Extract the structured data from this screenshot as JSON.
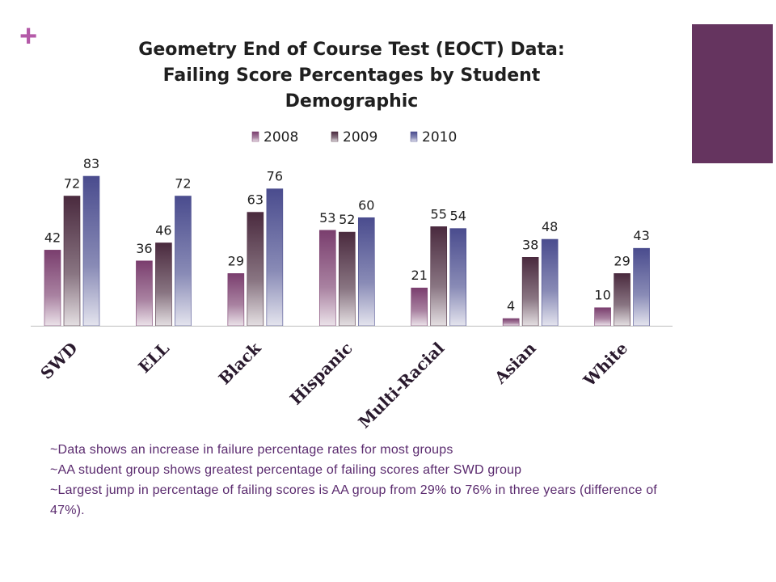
{
  "slide": {
    "plus_glyph": "+",
    "accent_color": "#65345f",
    "plus_color": "#b45aa8"
  },
  "chart_data": {
    "type": "bar",
    "title_lines": [
      "Geometry End of Course Test (EOCT) Data:",
      "Failing Score Percentages by Student",
      "Demographic"
    ],
    "categories": [
      "SWD",
      "ELL",
      "Black",
      "Hispanic",
      "Multi-Racial",
      "Asian",
      "White"
    ],
    "series": [
      {
        "name": "2008",
        "values": [
          42,
          36,
          29,
          53,
          21,
          4,
          10
        ],
        "color": "#7a3e6e"
      },
      {
        "name": "2009",
        "values": [
          72,
          46,
          63,
          52,
          55,
          38,
          29
        ],
        "color": "#4a2a3e"
      },
      {
        "name": "2010",
        "values": [
          83,
          72,
          76,
          60,
          54,
          48,
          43
        ],
        "color": "#4a4c8e"
      }
    ],
    "ylim": [
      0,
      83
    ],
    "grid": false,
    "legend_position": "top",
    "data_labels": true
  },
  "notes": [
    "~Data shows an increase in failure percentage rates for most groups",
    "~AA student group shows greatest percentage of failing scores after SWD group",
    "~Largest jump in percentage of failing scores is AA group from 29% to 76% in three years (difference of 47%)."
  ]
}
